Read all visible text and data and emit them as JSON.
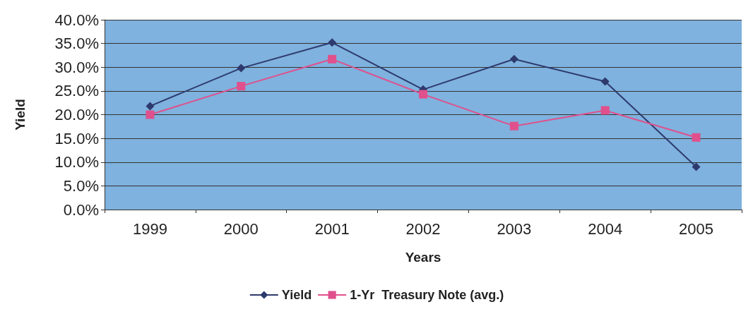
{
  "chart_data": {
    "type": "line",
    "xlabel": "Years",
    "ylabel": "Yield",
    "categories": [
      "1999",
      "2000",
      "2001",
      "2002",
      "2003",
      "2004",
      "2005"
    ],
    "series": [
      {
        "name": "Yield",
        "color": "#2e3a6e",
        "marker": "diamond",
        "values": [
          21.8,
          29.8,
          35.2,
          25.3,
          31.7,
          27.0,
          9.0
        ]
      },
      {
        "name": "1-Yr  Treasury Note (avg.)",
        "color": "#e0508c",
        "marker": "square",
        "values": [
          20.0,
          26.0,
          31.7,
          24.3,
          17.6,
          20.9,
          15.2
        ]
      }
    ],
    "ylim": [
      0,
      40
    ],
    "yticks": [
      {
        "value": 0,
        "label": "0.0%"
      },
      {
        "value": 5,
        "label": "5.0%"
      },
      {
        "value": 10,
        "label": "10.0%"
      },
      {
        "value": 15,
        "label": "15.0%"
      },
      {
        "value": 20,
        "label": "20.0%"
      },
      {
        "value": 25,
        "label": "25.0%"
      },
      {
        "value": 30,
        "label": "30.0%"
      },
      {
        "value": 35,
        "label": "35.0%"
      },
      {
        "value": 40,
        "label": "40.0%"
      }
    ],
    "grid": "y",
    "legend": "bottom",
    "line_style": "solid"
  }
}
